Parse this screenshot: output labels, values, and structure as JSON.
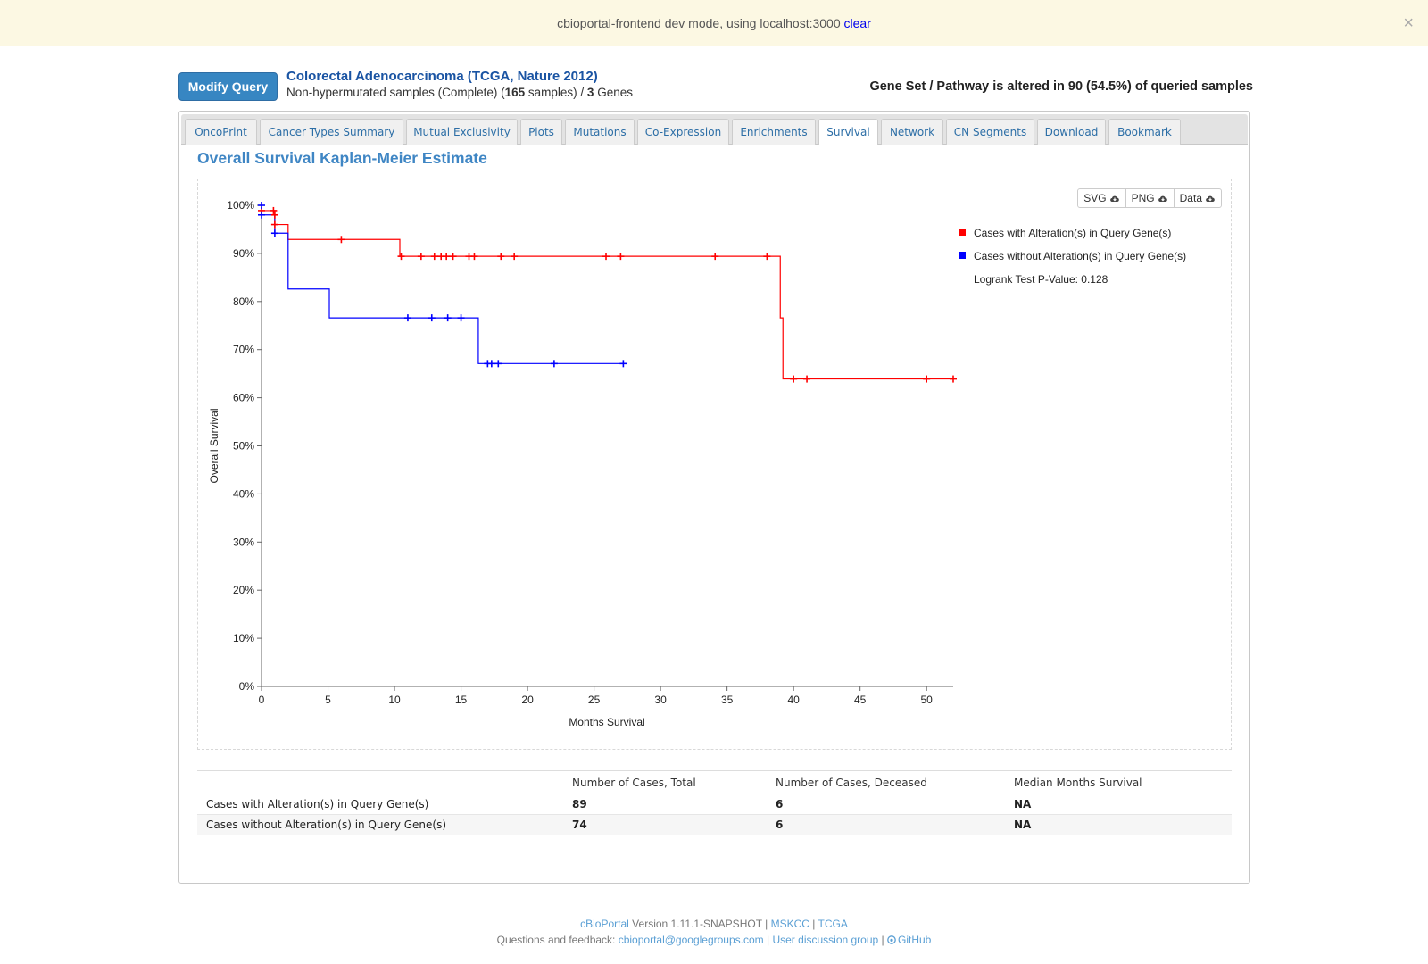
{
  "devbar": {
    "message": "cbioportal-frontend dev mode, using localhost:3000",
    "clear_link": "clear",
    "close_glyph": "×"
  },
  "header": {
    "modify_button": "Modify Query",
    "study_title": "Colorectal Adenocarcinoma (TCGA, Nature 2012)",
    "subtitle_prefix": "Non-hypermutated samples (Complete)  (",
    "sample_count": "165",
    "subtitle_mid": " samples) / ",
    "gene_count": "3",
    "subtitle_suffix": " Genes",
    "summary": "Gene Set / Pathway is altered in 90 (54.5%) of queried samples"
  },
  "tabs": [
    {
      "label": "OncoPrint",
      "active": false
    },
    {
      "label": "Cancer Types Summary",
      "active": false
    },
    {
      "label": "Mutual Exclusivity",
      "active": false
    },
    {
      "label": "Plots",
      "active": false
    },
    {
      "label": "Mutations",
      "active": false
    },
    {
      "label": "Co-Expression",
      "active": false
    },
    {
      "label": "Enrichments",
      "active": false
    },
    {
      "label": "Survival",
      "active": true
    },
    {
      "label": "Network",
      "active": false
    },
    {
      "label": "CN Segments",
      "active": false
    },
    {
      "label": "Download",
      "active": false
    },
    {
      "label": "Bookmark",
      "active": false
    }
  ],
  "survival": {
    "heading": "Overall Survival Kaplan-Meier Estimate",
    "downloads": [
      "SVG",
      "PNG",
      "Data"
    ],
    "table": {
      "headers": [
        "",
        "Number of Cases, Total",
        "Number of Cases, Deceased",
        "Median Months Survival"
      ],
      "rows": [
        [
          "Cases with Alteration(s) in Query Gene(s)",
          "89",
          "6",
          "NA"
        ],
        [
          "Cases without Alteration(s) in Query Gene(s)",
          "74",
          "6",
          "NA"
        ]
      ]
    }
  },
  "chart_data": {
    "type": "line",
    "title": "",
    "xlabel": "Months Survival",
    "ylabel": "Overall Survival",
    "xlim": [
      0,
      52
    ],
    "ylim": [
      0,
      100
    ],
    "x_ticks": [
      0,
      5,
      10,
      15,
      20,
      25,
      30,
      35,
      40,
      45,
      50
    ],
    "y_ticks": [
      0,
      10,
      20,
      30,
      40,
      50,
      60,
      70,
      80,
      90,
      100
    ],
    "y_tick_suffix": "%",
    "legend_position": "top-right",
    "annotation": "Logrank Test P-Value: 0.128",
    "series": [
      {
        "name": "Cases with Alteration(s) in Query Gene(s)",
        "color": "#ff0000",
        "steps": [
          [
            0,
            98.9
          ],
          [
            1.0,
            96.0
          ],
          [
            2.0,
            92.9
          ],
          [
            10.4,
            89.4
          ],
          [
            39.0,
            76.6
          ],
          [
            39.2,
            63.9
          ],
          [
            52,
            63.9
          ]
        ],
        "censored": [
          [
            0,
            98.9
          ],
          [
            0.9,
            98.9
          ],
          [
            1.0,
            98.0
          ],
          [
            1.0,
            96.0
          ],
          [
            6.0,
            92.9
          ],
          [
            10.5,
            89.4
          ],
          [
            12.0,
            89.4
          ],
          [
            13.0,
            89.4
          ],
          [
            13.5,
            89.4
          ],
          [
            13.9,
            89.4
          ],
          [
            14.4,
            89.4
          ],
          [
            15.6,
            89.4
          ],
          [
            16.0,
            89.4
          ],
          [
            18.0,
            89.4
          ],
          [
            19.0,
            89.4
          ],
          [
            25.9,
            89.4
          ],
          [
            27.0,
            89.4
          ],
          [
            34.1,
            89.4
          ],
          [
            38.0,
            89.4
          ],
          [
            40.0,
            63.9
          ],
          [
            41.0,
            63.9
          ],
          [
            50.0,
            63.9
          ],
          [
            52.0,
            63.9
          ]
        ]
      },
      {
        "name": "Cases without Alteration(s) in Query Gene(s)",
        "color": "#0000ff",
        "steps": [
          [
            0,
            98.0
          ],
          [
            1.0,
            94.2
          ],
          [
            2.0,
            82.6
          ],
          [
            5.1,
            76.6
          ],
          [
            16.3,
            67.1
          ],
          [
            27.2,
            67.1
          ]
        ],
        "censored": [
          [
            0,
            100.0
          ],
          [
            0,
            98.0
          ],
          [
            1.0,
            94.2
          ],
          [
            11.0,
            76.6
          ],
          [
            12.8,
            76.6
          ],
          [
            14.0,
            76.6
          ],
          [
            15.0,
            76.6
          ],
          [
            17.0,
            67.1
          ],
          [
            17.3,
            67.1
          ],
          [
            17.8,
            67.1
          ],
          [
            22.0,
            67.1
          ],
          [
            27.2,
            67.1
          ]
        ]
      }
    ]
  },
  "footer": {
    "brand": "cBioPortal",
    "version": " Version 1.11.1-SNAPSHOT | ",
    "mskcc": "MSKCC",
    "sep": " | ",
    "tcga": "TCGA",
    "feedback_prefix": "Questions and feedback: ",
    "email": "cbioportal@googlegroups.com",
    "sep2": " | ",
    "discussion": "User discussion group",
    "sep3": " | ",
    "github": "GitHub"
  }
}
